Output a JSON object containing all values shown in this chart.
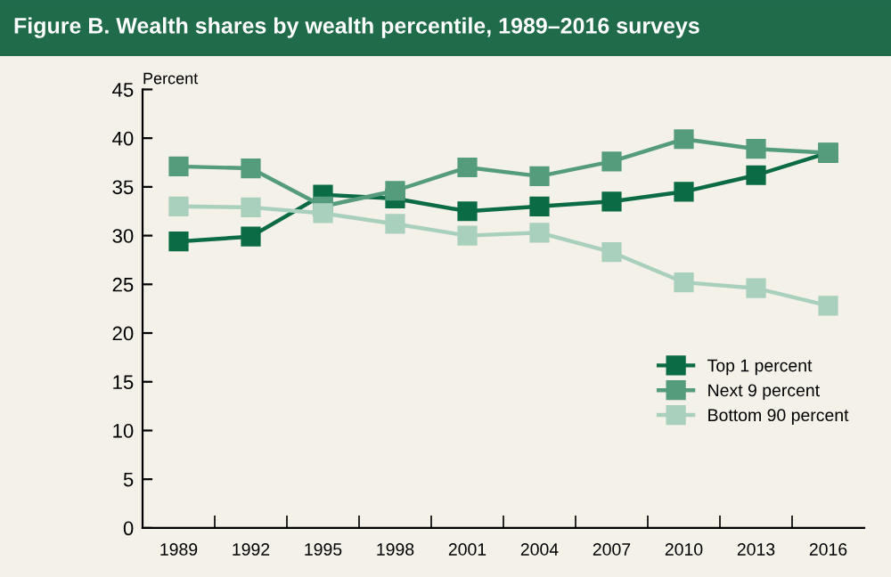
{
  "chart_data": {
    "type": "line",
    "title": "Figure B. Wealth shares by wealth percentile, 1989–2016 surveys",
    "ylabel": "Percent",
    "categories": [
      "1989",
      "1992",
      "1995",
      "1998",
      "2001",
      "2004",
      "2007",
      "2010",
      "2013",
      "2016"
    ],
    "series": [
      {
        "name": "Top 1 percent",
        "color": "#0b6b45",
        "values": [
          29.4,
          29.9,
          34.2,
          33.8,
          32.5,
          33.0,
          33.5,
          34.5,
          36.2,
          38.5
        ]
      },
      {
        "name": "Next 9 percent",
        "color": "#559c7c",
        "values": [
          37.1,
          36.9,
          33.0,
          34.6,
          37.0,
          36.1,
          37.6,
          39.9,
          38.9,
          38.5
        ]
      },
      {
        "name": "Bottom 90 percent",
        "color": "#a9d0bd",
        "values": [
          33.0,
          32.9,
          32.3,
          31.2,
          30.0,
          30.3,
          28.3,
          25.2,
          24.6,
          22.8
        ]
      }
    ],
    "ylim": [
      0,
      45
    ],
    "yticks": [
      0,
      5,
      10,
      15,
      20,
      25,
      30,
      35,
      40,
      45
    ],
    "grid": false,
    "legend": "bottom right",
    "marker": "square",
    "line_style": "solid"
  }
}
